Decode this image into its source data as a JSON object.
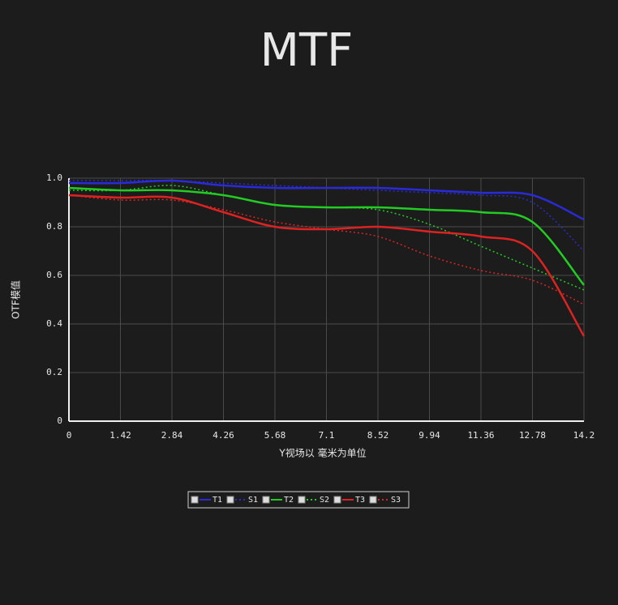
{
  "chart_data": {
    "type": "line",
    "title": "MTF",
    "x_label": "Y视场以  毫米为单位",
    "y_label": "OTF模值",
    "x": [
      0,
      1.42,
      2.84,
      4.26,
      5.68,
      7.1,
      8.52,
      9.94,
      11.36,
      12.78,
      14.2
    ],
    "xlim": [
      0,
      14.2
    ],
    "xticks": [
      0,
      1.42,
      2.84,
      4.26,
      5.68,
      7.1,
      8.52,
      9.94,
      11.36,
      12.78,
      14.2
    ],
    "ylim": [
      0,
      1
    ],
    "yticks": [
      0,
      0.2,
      0.4,
      0.6,
      0.8,
      {
        "value": 1,
        "label": "1.0"
      }
    ],
    "grid": true,
    "legend": "bottom",
    "series": [
      {
        "name": "T1",
        "color": "#2a2ad6",
        "style": "solid",
        "values": [
          0.98,
          0.98,
          0.99,
          0.97,
          0.96,
          0.96,
          0.96,
          0.95,
          0.94,
          0.93,
          0.83
        ]
      },
      {
        "name": "S1",
        "color": "#2a2ad6",
        "style": "dotted",
        "values": [
          0.99,
          0.99,
          0.99,
          0.98,
          0.97,
          0.96,
          0.95,
          0.94,
          0.93,
          0.9,
          0.7
        ]
      },
      {
        "name": "T2",
        "color": "#22cc22",
        "style": "solid",
        "values": [
          0.96,
          0.95,
          0.95,
          0.93,
          0.89,
          0.88,
          0.88,
          0.87,
          0.86,
          0.82,
          0.56
        ]
      },
      {
        "name": "S2",
        "color": "#22cc22",
        "style": "dotted",
        "values": [
          0.95,
          0.95,
          0.97,
          0.93,
          0.89,
          0.88,
          0.87,
          0.81,
          0.72,
          0.63,
          0.54
        ]
      },
      {
        "name": "T3",
        "color": "#dd2222",
        "style": "solid",
        "values": [
          0.93,
          0.92,
          0.92,
          0.86,
          0.8,
          0.79,
          0.8,
          0.78,
          0.76,
          0.7,
          0.35
        ]
      },
      {
        "name": "S3",
        "color": "#dd2222",
        "style": "dotted",
        "values": [
          0.93,
          0.91,
          0.91,
          0.87,
          0.82,
          0.79,
          0.76,
          0.68,
          0.62,
          0.58,
          0.48
        ]
      }
    ]
  }
}
